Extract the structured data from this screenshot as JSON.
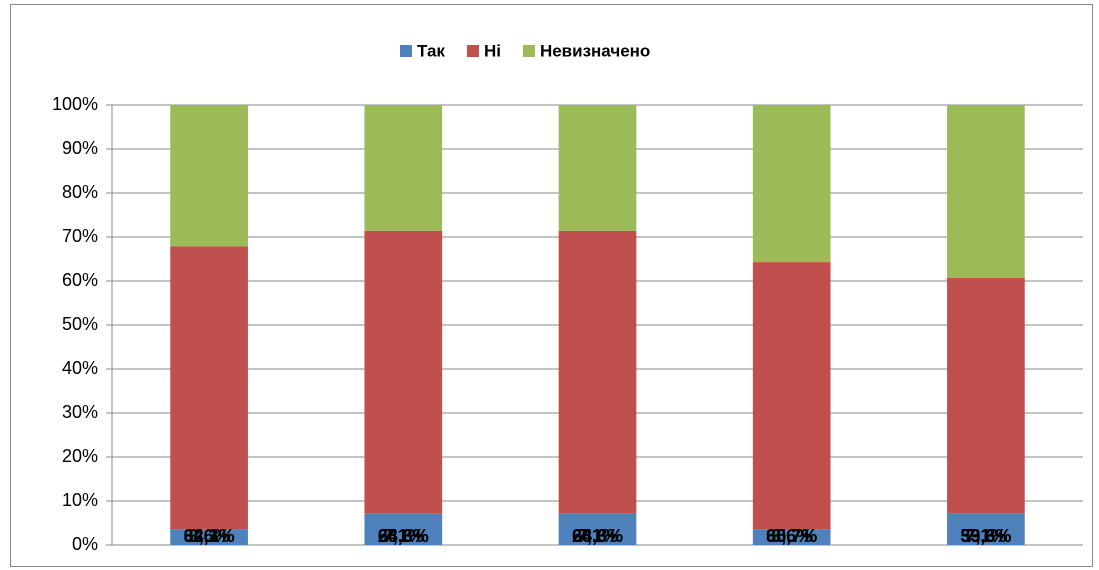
{
  "chart_data": {
    "type": "stacked_bar",
    "categories": [
      null,
      null,
      null,
      null,
      null
    ],
    "series": [
      {
        "name": "Так",
        "color": "#4f81bd",
        "values": [
          3.6,
          7.1,
          7.1,
          3.6,
          7.1
        ],
        "value_labels": [
          "3,6%",
          "7,1%",
          "7,1%",
          "3,6%",
          "7,1%"
        ]
      },
      {
        "name": "Ні",
        "color": "#c0504d",
        "values": [
          64.3,
          64.3,
          64.3,
          60.7,
          53.6
        ],
        "value_labels": [
          "64,3%",
          "64,3%",
          "64,3%",
          "60,7%",
          "53,6%"
        ]
      },
      {
        "name": "Невизначено",
        "color": "#9bbb59",
        "values": [
          32.1,
          28.6,
          28.6,
          35.7,
          39.3
        ],
        "value_labels": [
          "32,1%",
          "28,6%",
          "28,6%",
          "35,7%",
          "39,3%"
        ]
      }
    ],
    "ylim": [
      0,
      100
    ],
    "yticks": [
      {
        "value": 0,
        "label": "0%"
      },
      {
        "value": 10,
        "label": "10%"
      },
      {
        "value": 20,
        "label": "20%"
      },
      {
        "value": 30,
        "label": "30%"
      },
      {
        "value": 40,
        "label": "40%"
      },
      {
        "value": 50,
        "label": "50%"
      },
      {
        "value": 60,
        "label": "60%"
      },
      {
        "value": 70,
        "label": "70%"
      },
      {
        "value": 80,
        "label": "80%"
      },
      {
        "value": 90,
        "label": "90%"
      },
      {
        "value": 100,
        "label": "100%"
      }
    ],
    "grid": true,
    "legend": "top"
  }
}
